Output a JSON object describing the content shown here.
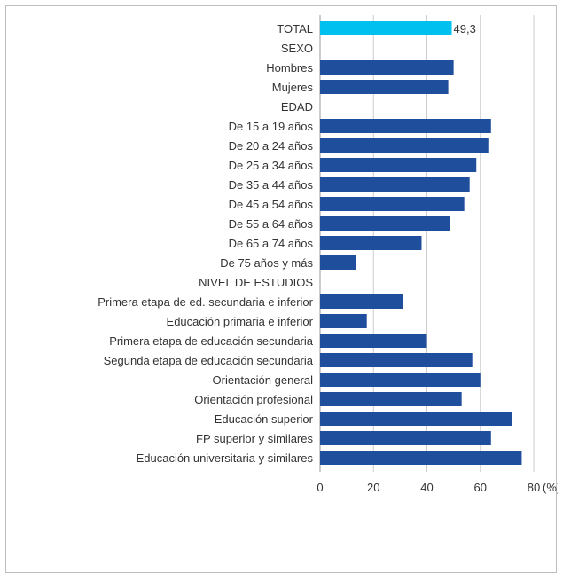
{
  "chart_data": {
    "type": "bar",
    "orientation": "horizontal",
    "categories": [
      "TOTAL",
      "SEXO",
      "Hombres",
      "Mujeres",
      "EDAD",
      "De 15 a 19 años",
      "De 20 a 24 años",
      "De 25 a 34 años",
      "De 35 a 44 años",
      "De 45 a 54 años",
      "De 55 a 64 años",
      "De 65 a 74 años",
      "De 75 años y más",
      "NIVEL DE ESTUDIOS",
      "Primera etapa de ed. secundaria e inferior",
      "Educación primaria e inferior",
      "Primera etapa de educación secundaria",
      "Segunda etapa de educación secundaria",
      "Orientación general",
      "Orientación profesional",
      "Educación superior",
      "FP superior y similares",
      "Educación universitaria y similares"
    ],
    "values": [
      49.3,
      null,
      50,
      48,
      null,
      64,
      63,
      58.5,
      56,
      54,
      48.5,
      38,
      13.5,
      null,
      31,
      17.5,
      40,
      57,
      60,
      53,
      72,
      64,
      75.5
    ],
    "highlight_index": 0,
    "data_labels": [
      {
        "index": 0,
        "text": "49,3"
      }
    ],
    "xlim": [
      0,
      80
    ],
    "xticks": [
      "0",
      "20",
      "40",
      "60",
      "80"
    ],
    "xunit": "(%)",
    "grid": "vertical",
    "colors": {
      "bar": "#1f4e9c",
      "highlight": "#00c0f0",
      "grid": "#cccccc",
      "text": "#333333"
    }
  }
}
